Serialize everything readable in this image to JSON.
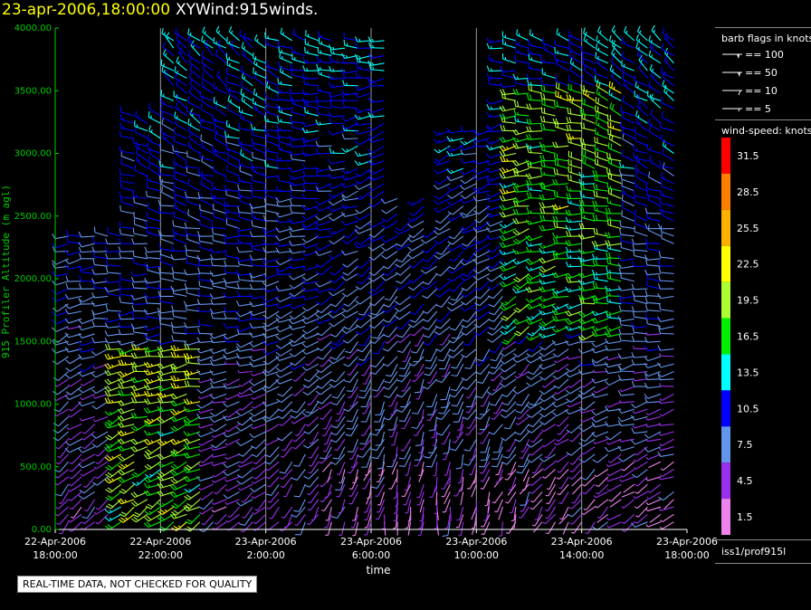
{
  "header": {
    "timestamp": "23-apr-2006,18:00:00",
    "product": "XYWind:915winds."
  },
  "chart_data": {
    "type": "scatter",
    "subtype": "wind-barb time-height plot",
    "ylabel": "915 Profiler Altitude (m agl)",
    "xlabel": "time",
    "ylim": [
      0,
      4000
    ],
    "yticks": [
      "0.00",
      "500.00",
      "1000.00",
      "1500.00",
      "2000.00",
      "2500.00",
      "3000.00",
      "3500.00",
      "4000.00"
    ],
    "xticks": [
      {
        "date": "22-Apr-2006",
        "time": "18:00:00"
      },
      {
        "date": "22-Apr-2006",
        "time": "22:00:00"
      },
      {
        "date": "23-Apr-2006",
        "time": "2:00:00"
      },
      {
        "date": "23-Apr-2006",
        "time": "6:00:00"
      },
      {
        "date": "23-Apr-2006",
        "time": "10:00:00"
      },
      {
        "date": "23-Apr-2006",
        "time": "14:00:00"
      },
      {
        "date": "23-Apr-2006",
        "time": "18:00:00"
      }
    ],
    "xlim_hours": [
      0,
      24
    ],
    "grid": "vertical lines at x ticks",
    "barb_legend": {
      "title": "barb flags in knots",
      "entries": [
        "== 100",
        "== 50",
        "== 10",
        "== 5"
      ]
    },
    "speed_legend": {
      "title": "wind-speed: knots",
      "levels": [
        "31.5",
        "28.5",
        "25.5",
        "22.5",
        "19.5",
        "16.5",
        "13.5",
        "10.5",
        "7.5",
        "4.5",
        "1.5"
      ],
      "colors": [
        "#ff0000",
        "#ff8000",
        "#ffb000",
        "#ffff00",
        "#aaff33",
        "#00ee00",
        "#00ffff",
        "#0000ff",
        "#6495ed",
        "#9a30ee",
        "#ee82ee"
      ]
    },
    "levels_m": [
      60,
      120,
      180,
      240,
      300,
      360,
      420,
      480,
      540,
      600,
      660,
      720,
      780,
      840,
      900,
      960,
      1020,
      1080,
      1140,
      1200,
      1260,
      1320,
      1380,
      1440,
      1500,
      1560,
      1620,
      1680,
      1740,
      1800,
      1860,
      1920,
      1980,
      2040,
      2100,
      2160,
      2220,
      2280,
      2340,
      2400,
      2460,
      2520,
      2580,
      2640,
      2700,
      2760,
      2820,
      2880,
      2940,
      3000,
      3060,
      3120,
      3180,
      3240,
      3300,
      3360,
      3420,
      3480,
      3540,
      3600,
      3660,
      3720,
      3780,
      3840,
      3900,
      3960
    ],
    "profiles_hours": [
      0.5,
      1.0,
      1.5,
      2.0,
      2.5,
      3.0,
      3.5,
      4.0,
      4.5,
      5.0,
      5.5,
      6.0,
      6.5,
      7.0,
      7.5,
      8.0,
      8.5,
      9.0,
      9.5,
      10.0,
      10.5,
      11.0,
      11.5,
      12.0,
      12.5,
      13.0,
      13.5,
      14.0,
      14.5,
      15.0,
      15.5,
      16.0,
      16.5,
      17.0,
      17.5,
      18.0,
      18.5,
      19.0,
      19.5,
      20.0,
      20.5,
      21.0,
      21.5,
      22.0,
      22.5,
      23.0,
      23.5
    ]
  },
  "footer": {
    "station": "iss1/prof915l",
    "qc_note": "REAL-TIME DATA, NOT CHECKED FOR QUALITY"
  }
}
